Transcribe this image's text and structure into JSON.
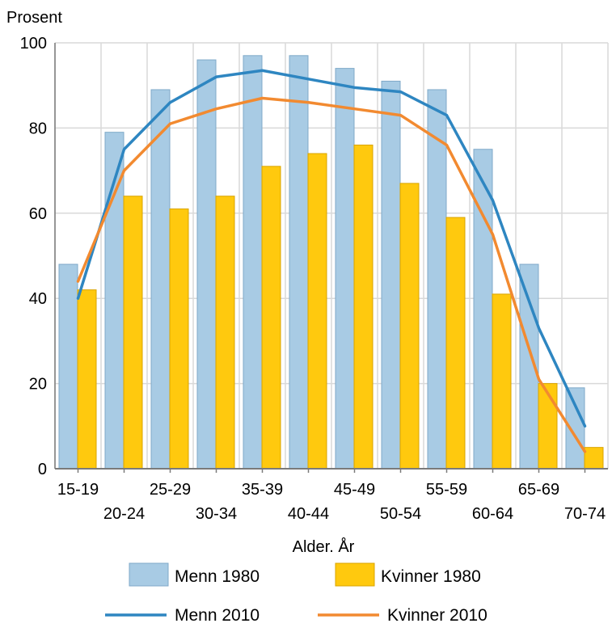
{
  "chart_data": {
    "type": "bar",
    "ylabel": "Prosent",
    "xlabel": "Alder. År",
    "ylim": [
      0,
      100
    ],
    "yticks": [
      0,
      20,
      40,
      60,
      80,
      100
    ],
    "grid": true,
    "legend_position": "bottom",
    "categories": [
      "15-19",
      "20-24",
      "25-29",
      "30-34",
      "35-39",
      "40-44",
      "45-49",
      "50-54",
      "55-59",
      "60-64",
      "65-69",
      "70-74"
    ],
    "bar_series": [
      {
        "name": "Menn 1980",
        "color": "#a8cbe4",
        "stroke": "#7fa9c8",
        "values": [
          48,
          79,
          89,
          96,
          97,
          97,
          94,
          91,
          89,
          75,
          48,
          19
        ]
      },
      {
        "name": "Kvinner 1980",
        "color": "#ffc90e",
        "stroke": "#d9a400",
        "values": [
          42,
          64,
          61,
          64,
          71,
          74,
          76,
          67,
          59,
          41,
          20,
          5
        ]
      }
    ],
    "line_series": [
      {
        "name": "Menn 2010",
        "color": "#2e86c1",
        "values": [
          40,
          75,
          86,
          92,
          93.5,
          91.5,
          89.5,
          88.5,
          83,
          63,
          33,
          10
        ]
      },
      {
        "name": "Kvinner 2010",
        "color": "#f28a30",
        "values": [
          44,
          70,
          81,
          84.5,
          87,
          86,
          84.5,
          83,
          76,
          55,
          21,
          4
        ]
      }
    ]
  }
}
